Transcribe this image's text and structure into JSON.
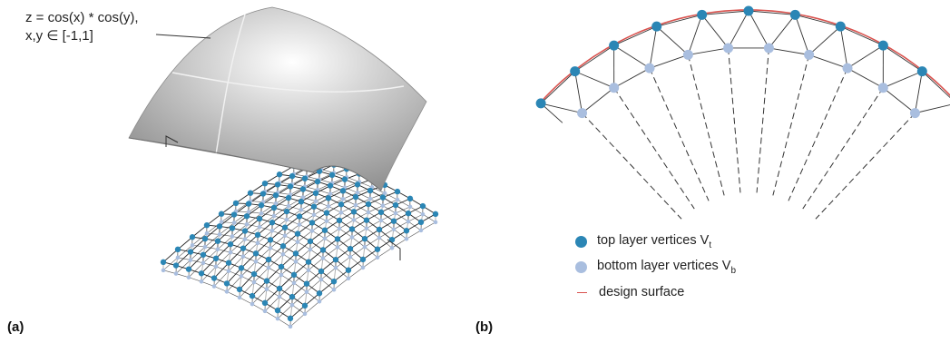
{
  "panel_a": {
    "label": "(a)",
    "equation_line1": "z = cos(x) * cos(y),",
    "equation_line2": "x,y ∈ [-1,1]"
  },
  "panel_b": {
    "label": "(b)",
    "legend": {
      "top_label": "top layer vertices V",
      "top_sub": "t",
      "bottom_label": "bottom layer vertices V",
      "bottom_sub": "b",
      "surface_label": "design surface"
    }
  },
  "colors": {
    "top_vertex": "#2b86b5",
    "bottom_vertex": "#a9bedf",
    "design_surface": "#d9534f",
    "edge": "#333333",
    "surface_gray": "#b9b9b9"
  }
}
